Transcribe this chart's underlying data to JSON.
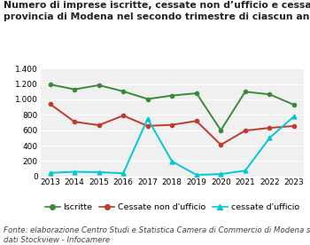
{
  "title_line1": "Numero di imprese iscritte, cessate non d’ufficio e cessate d’ufficio in",
  "title_line2": "provincia di Modena nel secondo trimestre di ciascun anno",
  "footer": "Fonte: elaborazione Centro Studi e Statistica Camera di Commercio di Modena su banca\ndati Stockview - Infocamere",
  "years": [
    2013,
    2014,
    2015,
    2016,
    2017,
    2018,
    2019,
    2020,
    2021,
    2022,
    2023
  ],
  "iscritte": [
    1195,
    1130,
    1185,
    1105,
    1005,
    1050,
    1080,
    600,
    1100,
    1065,
    930
  ],
  "cessate_non_uff": [
    940,
    710,
    665,
    790,
    655,
    670,
    720,
    410,
    595,
    630,
    655
  ],
  "cessate_uff": [
    45,
    60,
    55,
    40,
    750,
    195,
    20,
    30,
    75,
    500,
    780
  ],
  "iscritte_color": "#3a8a3a",
  "cessate_non_uff_color": "#c0392b",
  "cessate_uff_color": "#00c8d4",
  "ylim": [
    0,
    1400
  ],
  "yticks": [
    0,
    200,
    400,
    600,
    800,
    1000,
    1200,
    1400
  ],
  "background_color": "#ffffff",
  "plot_bg_color": "#f0f0f0",
  "grid_color": "#ffffff",
  "title_fontsize": 7.8,
  "footer_fontsize": 6.2,
  "legend_fontsize": 6.8,
  "tick_fontsize": 6.5
}
